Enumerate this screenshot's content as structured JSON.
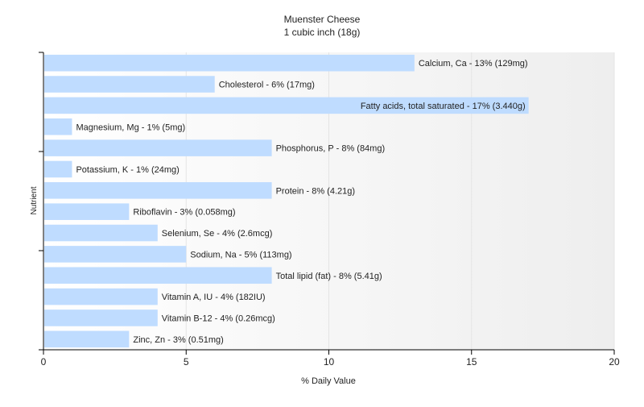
{
  "chart_data": {
    "type": "bar",
    "orientation": "horizontal",
    "title": "Muenster Cheese",
    "subtitle": "1 cubic inch (18g)",
    "xlabel": "% Daily Value",
    "ylabel": "Nutrient",
    "xlim": [
      0,
      20
    ],
    "x_ticks": [
      0,
      5,
      10,
      15,
      20
    ],
    "grid": true,
    "bar_color": "#bfdcff",
    "categories": [
      "Calcium, Ca",
      "Cholesterol",
      "Fatty acids, total saturated",
      "Magnesium, Mg",
      "Phosphorus, P",
      "Potassium, K",
      "Protein",
      "Riboflavin",
      "Selenium, Se",
      "Sodium, Na",
      "Total lipid (fat)",
      "Vitamin A, IU",
      "Vitamin B-12",
      "Zinc, Zn"
    ],
    "values": [
      13,
      6,
      17,
      1,
      8,
      1,
      8,
      3,
      4,
      5,
      8,
      4,
      4,
      3
    ],
    "labels": [
      "Calcium, Ca - 13% (129mg)",
      "Cholesterol - 6% (17mg)",
      "Fatty acids, total saturated - 17% (3.440g)",
      "Magnesium, Mg - 1% (5mg)",
      "Phosphorus, P - 8% (84mg)",
      "Potassium, K - 1% (24mg)",
      "Protein - 8% (4.21g)",
      "Riboflavin - 3% (0.058mg)",
      "Selenium, Se - 4% (2.6mcg)",
      "Sodium, Na - 5% (113mg)",
      "Total lipid (fat) - 8% (5.41g)",
      "Vitamin A, IU - 4% (182IU)",
      "Vitamin B-12 - 4% (0.26mcg)",
      "Zinc, Zn - 3% (0.51mg)"
    ]
  }
}
